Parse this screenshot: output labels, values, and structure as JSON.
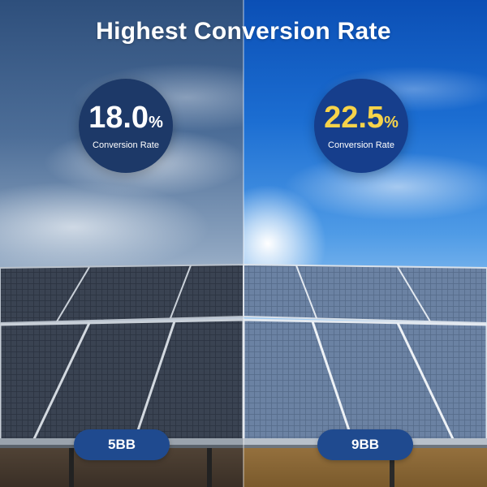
{
  "title": "Highest Conversion Rate",
  "left": {
    "rate_value": "18.0",
    "rate_unit": "%",
    "rate_label": "Conversion Rate",
    "tag": "5BB",
    "rate_color": "#ffffff",
    "badge_color": "#1d3968"
  },
  "right": {
    "rate_value": "22.5",
    "rate_unit": "%",
    "rate_label": "Conversion Rate",
    "tag": "9BB",
    "rate_color": "#f7d34a",
    "badge_color": "#163e8c"
  },
  "colors": {
    "pill": "#1f4a8f",
    "title": "#ffffff"
  }
}
